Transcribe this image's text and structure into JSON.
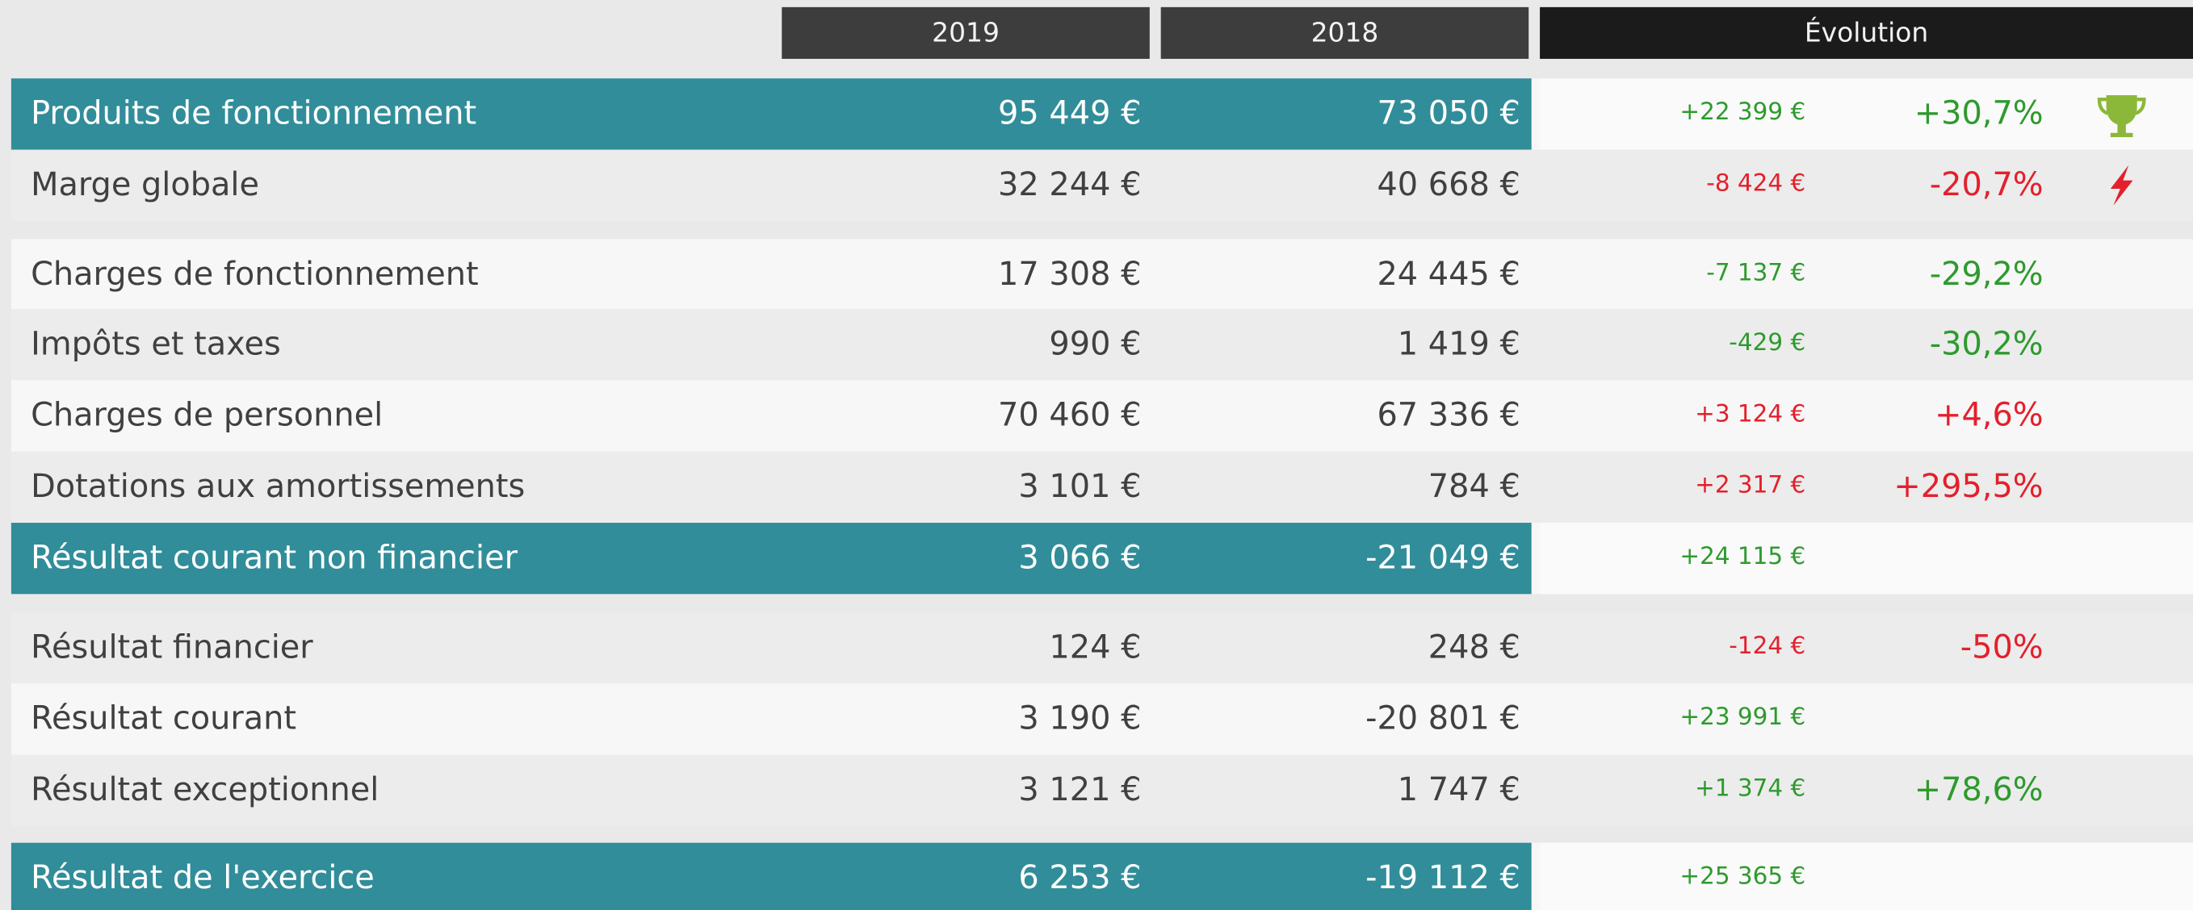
{
  "table": {
    "header": [
      "2019",
      "2018",
      "Évolution"
    ],
    "rows": [
      {
        "label": "Produits de fonctionnement",
        "y2019": "95 449 €",
        "y2018": "73 050 €",
        "diff": "+22 399 €",
        "pct": "+30,7%",
        "color": "#2e9a2e",
        "highlight": true
      },
      {
        "label": "Marge globale",
        "y2019": "32 244 €",
        "y2018": "40 668 €",
        "diff": "-8 424 €",
        "pct": "-20,7%",
        "color": "#e3202c",
        "highlight": false
      },
      {
        "label": "Charges de fonctionnement",
        "y2019": "17 308 €",
        "y2018": "24 445 €",
        "diff": "-7 137 €",
        "pct": "-29,2%",
        "color": "#2e9a2e",
        "highlight": false
      },
      {
        "label": "Impôts et taxes",
        "y2019": "990 €",
        "y2018": "1 419 €",
        "diff": "-429 €",
        "pct": "-30,2%",
        "color": "#2e9a2e",
        "highlight": false
      },
      {
        "label": "Charges de personnel",
        "y2019": "70 460 €",
        "y2018": "67 336 €",
        "diff": "+3 124 €",
        "pct": "+4,6%",
        "color": "#e3202c",
        "highlight": false
      },
      {
        "label": "Dotations aux amortissements",
        "y2019": "3 101 €",
        "y2018": "784 €",
        "diff": "+2 317 €",
        "pct": "+295,5%",
        "color": "#e3202c",
        "highlight": false
      },
      {
        "label": "Résultat courant non financier",
        "y2019": "3 066 €",
        "y2018": "-21 049 €",
        "diff": "+24 115 €",
        "color": "#2e9a2e",
        "highlight": true
      },
      {
        "label": "Résultat financier",
        "y2019": "124 €",
        "y2018": "248 €",
        "diff": "-124 €",
        "pct": "-50%",
        "color": "#e3202c",
        "highlight": false
      },
      {
        "label": "Résultat courant",
        "y2019": "3 190 €",
        "y2018": "-20 801 €",
        "diff": "+23 991 €",
        "color": "#2e9a2e",
        "highlight": false
      },
      {
        "label": "Résultat exceptionnel",
        "y2019": "3 121 €",
        "y2018": "1 747 €",
        "diff": "+1 374 €",
        "pct": "+78,6%",
        "color": "#2e9a2e",
        "highlight": false
      },
      {
        "label": "Résultat de l'exercice",
        "y2019": "6 253 €",
        "y2018": "-19 112 €",
        "diff": "+25 365 €",
        "color": "#2e9a2e",
        "highlight": true
      }
    ]
  }
}
